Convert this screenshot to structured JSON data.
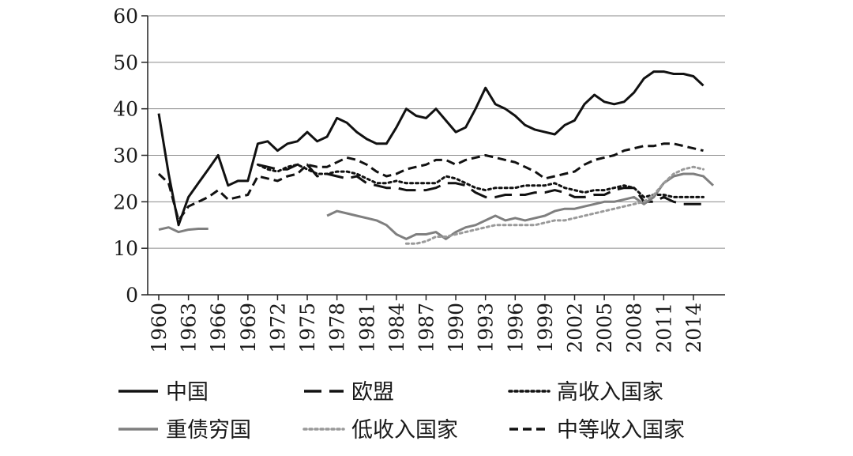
{
  "chart_data": {
    "type": "line",
    "ylim": [
      0,
      60
    ],
    "yticks": [
      "0",
      "10",
      "20",
      "30",
      "40",
      "50",
      "60"
    ],
    "xlim": [
      1960,
      2016
    ],
    "xticks": [
      "1960",
      "1963",
      "1966",
      "1969",
      "1972",
      "1975",
      "1978",
      "1981",
      "1984",
      "1987",
      "1990",
      "1993",
      "1996",
      "1999",
      "2002",
      "2005",
      "2008",
      "2011",
      "2014"
    ],
    "grid": "horizontal",
    "legend_position": "bottom",
    "series": [
      {
        "name": "中国",
        "color": "#111111",
        "dash": "solid",
        "width": 3,
        "points": [
          [
            1960,
            39
          ],
          [
            1961,
            26
          ],
          [
            1962,
            15
          ],
          [
            1963,
            21
          ],
          [
            1964,
            24
          ],
          [
            1965,
            27
          ],
          [
            1966,
            30
          ],
          [
            1967,
            23.5
          ],
          [
            1968,
            24.5
          ],
          [
            1969,
            24.5
          ],
          [
            1970,
            32.5
          ],
          [
            1971,
            33
          ],
          [
            1972,
            31
          ],
          [
            1973,
            32.5
          ],
          [
            1974,
            33
          ],
          [
            1975,
            35
          ],
          [
            1976,
            33
          ],
          [
            1977,
            34
          ],
          [
            1978,
            38
          ],
          [
            1979,
            37
          ],
          [
            1980,
            35
          ],
          [
            1981,
            33.5
          ],
          [
            1982,
            32.5
          ],
          [
            1983,
            32.5
          ],
          [
            1984,
            36
          ],
          [
            1985,
            40
          ],
          [
            1986,
            38.5
          ],
          [
            1987,
            38
          ],
          [
            1988,
            40
          ],
          [
            1989,
            37.5
          ],
          [
            1990,
            35
          ],
          [
            1991,
            36
          ],
          [
            1992,
            40
          ],
          [
            1993,
            44.5
          ],
          [
            1994,
            41
          ],
          [
            1995,
            40
          ],
          [
            1996,
            38.5
          ],
          [
            1997,
            36.5
          ],
          [
            1998,
            35.5
          ],
          [
            1999,
            35
          ],
          [
            2000,
            34.5
          ],
          [
            2001,
            36.5
          ],
          [
            2002,
            37.5
          ],
          [
            2003,
            41
          ],
          [
            2004,
            43
          ],
          [
            2005,
            41.5
          ],
          [
            2006,
            41
          ],
          [
            2007,
            41.5
          ],
          [
            2008,
            43.5
          ],
          [
            2009,
            46.5
          ],
          [
            2010,
            48
          ],
          [
            2011,
            48
          ],
          [
            2012,
            47.5
          ],
          [
            2013,
            47.5
          ],
          [
            2014,
            47
          ],
          [
            2015,
            45
          ]
        ]
      },
      {
        "name": "欧盟",
        "color": "#111111",
        "dash": "longdash",
        "width": 3,
        "points": [
          [
            1970,
            28
          ],
          [
            1971,
            27.5
          ],
          [
            1972,
            27
          ],
          [
            1973,
            27
          ],
          [
            1974,
            28
          ],
          [
            1975,
            28
          ],
          [
            1976,
            25.5
          ],
          [
            1977,
            26
          ],
          [
            1978,
            25.5
          ],
          [
            1979,
            25
          ],
          [
            1980,
            25.5
          ],
          [
            1981,
            24
          ],
          [
            1982,
            23.5
          ],
          [
            1983,
            23
          ],
          [
            1984,
            23
          ],
          [
            1985,
            22.5
          ],
          [
            1986,
            22.5
          ],
          [
            1987,
            22.5
          ],
          [
            1988,
            23
          ],
          [
            1989,
            24
          ],
          [
            1990,
            24
          ],
          [
            1991,
            23.5
          ],
          [
            1992,
            22
          ],
          [
            1993,
            21
          ],
          [
            1994,
            21
          ],
          [
            1995,
            21.5
          ],
          [
            1996,
            21.5
          ],
          [
            1997,
            21.5
          ],
          [
            1998,
            22
          ],
          [
            1999,
            22
          ],
          [
            2000,
            22.5
          ],
          [
            2001,
            22
          ],
          [
            2002,
            21
          ],
          [
            2003,
            21
          ],
          [
            2004,
            21.5
          ],
          [
            2005,
            21.5
          ],
          [
            2006,
            22.5
          ],
          [
            2007,
            23
          ],
          [
            2008,
            23
          ],
          [
            2009,
            20
          ],
          [
            2010,
            20
          ],
          [
            2011,
            21
          ],
          [
            2012,
            20
          ],
          [
            2013,
            19.5
          ],
          [
            2014,
            19.5
          ],
          [
            2015,
            19.5
          ]
        ]
      },
      {
        "name": "高收入国家",
        "color": "#111111",
        "dash": "dotted",
        "width": 3,
        "points": [
          [
            1970,
            28
          ],
          [
            1971,
            27
          ],
          [
            1972,
            26.5
          ],
          [
            1973,
            27.5
          ],
          [
            1974,
            28
          ],
          [
            1975,
            27
          ],
          [
            1976,
            26
          ],
          [
            1977,
            26
          ],
          [
            1978,
            26.5
          ],
          [
            1979,
            26.5
          ],
          [
            1980,
            26
          ],
          [
            1981,
            25
          ],
          [
            1982,
            24
          ],
          [
            1983,
            24
          ],
          [
            1984,
            24.5
          ],
          [
            1985,
            24
          ],
          [
            1986,
            24
          ],
          [
            1987,
            24
          ],
          [
            1988,
            24
          ],
          [
            1989,
            25.5
          ],
          [
            1990,
            25
          ],
          [
            1991,
            24
          ],
          [
            1992,
            23
          ],
          [
            1993,
            22.5
          ],
          [
            1994,
            23
          ],
          [
            1995,
            23
          ],
          [
            1996,
            23
          ],
          [
            1997,
            23.5
          ],
          [
            1998,
            23.5
          ],
          [
            1999,
            23.5
          ],
          [
            2000,
            24
          ],
          [
            2001,
            23
          ],
          [
            2002,
            22.5
          ],
          [
            2003,
            22
          ],
          [
            2004,
            22.5
          ],
          [
            2005,
            22.5
          ],
          [
            2006,
            23
          ],
          [
            2007,
            23.5
          ],
          [
            2008,
            23
          ],
          [
            2009,
            21
          ],
          [
            2010,
            21.5
          ],
          [
            2011,
            21.5
          ],
          [
            2012,
            21
          ],
          [
            2013,
            21
          ],
          [
            2014,
            21
          ],
          [
            2015,
            21
          ]
        ]
      },
      {
        "name": "重债穷国",
        "color": "#7f7f7f",
        "dash": "solid",
        "width": 3,
        "segments": [
          [
            [
              1960,
              14
            ],
            [
              1961,
              14.5
            ],
            [
              1962,
              13.5
            ],
            [
              1963,
              14
            ],
            [
              1964,
              14.2
            ],
            [
              1965,
              14.2
            ]
          ],
          [
            [
              1977,
              17
            ],
            [
              1978,
              18
            ],
            [
              1979,
              17.5
            ],
            [
              1980,
              17
            ],
            [
              1981,
              16.5
            ],
            [
              1982,
              16
            ],
            [
              1983,
              15
            ],
            [
              1984,
              13
            ],
            [
              1985,
              12
            ],
            [
              1986,
              13
            ],
            [
              1987,
              13
            ],
            [
              1988,
              13.5
            ],
            [
              1989,
              12
            ],
            [
              1990,
              13.5
            ],
            [
              1991,
              14.5
            ],
            [
              1992,
              15
            ],
            [
              1993,
              16
            ],
            [
              1994,
              17
            ],
            [
              1995,
              16
            ],
            [
              1996,
              16.5
            ],
            [
              1997,
              16
            ],
            [
              1998,
              16.5
            ],
            [
              1999,
              17
            ],
            [
              2000,
              18
            ],
            [
              2001,
              18.5
            ],
            [
              2002,
              18.5
            ],
            [
              2003,
              19
            ],
            [
              2004,
              19.5
            ],
            [
              2005,
              20
            ],
            [
              2006,
              20
            ],
            [
              2007,
              20.5
            ],
            [
              2008,
              21
            ],
            [
              2009,
              19.5
            ],
            [
              2010,
              21
            ],
            [
              2011,
              24
            ],
            [
              2012,
              25.5
            ],
            [
              2013,
              26
            ],
            [
              2014,
              26
            ],
            [
              2015,
              25.5
            ],
            [
              2016,
              23.5
            ]
          ]
        ]
      },
      {
        "name": "低收入国家",
        "color": "#9a9a9a",
        "dash": "dotted",
        "width": 3,
        "points": [
          [
            1985,
            11
          ],
          [
            1986,
            11
          ],
          [
            1987,
            11.5
          ],
          [
            1988,
            12.5
          ],
          [
            1989,
            12.5
          ],
          [
            1990,
            13
          ],
          [
            1991,
            13.5
          ],
          [
            1992,
            14
          ],
          [
            1993,
            14.5
          ],
          [
            1994,
            15
          ],
          [
            1995,
            15
          ],
          [
            1996,
            15
          ],
          [
            1997,
            15
          ],
          [
            1998,
            15
          ],
          [
            1999,
            15.5
          ],
          [
            2000,
            16
          ],
          [
            2001,
            16
          ],
          [
            2002,
            16.5
          ],
          [
            2003,
            17
          ],
          [
            2004,
            17.5
          ],
          [
            2005,
            18
          ],
          [
            2006,
            18.5
          ],
          [
            2007,
            19
          ],
          [
            2008,
            19.5
          ],
          [
            2009,
            20
          ],
          [
            2010,
            21.5
          ],
          [
            2011,
            24
          ],
          [
            2012,
            26
          ],
          [
            2013,
            27
          ],
          [
            2014,
            27.5
          ],
          [
            2015,
            27
          ]
        ]
      },
      {
        "name": "中等收入国家",
        "color": "#111111",
        "dash": "shortdash",
        "width": 3,
        "points": [
          [
            1960,
            26
          ],
          [
            1961,
            24
          ],
          [
            1962,
            16
          ],
          [
            1963,
            19
          ],
          [
            1964,
            20
          ],
          [
            1965,
            21
          ],
          [
            1966,
            22.5
          ],
          [
            1967,
            20.5
          ],
          [
            1968,
            21
          ],
          [
            1969,
            21.5
          ],
          [
            1970,
            25.5
          ],
          [
            1971,
            25
          ],
          [
            1972,
            24.5
          ],
          [
            1973,
            25.5
          ],
          [
            1974,
            26
          ],
          [
            1975,
            28
          ],
          [
            1976,
            27.5
          ],
          [
            1977,
            27.5
          ],
          [
            1978,
            28.5
          ],
          [
            1979,
            29.5
          ],
          [
            1980,
            29
          ],
          [
            1981,
            28
          ],
          [
            1982,
            26.5
          ],
          [
            1983,
            25.5
          ],
          [
            1984,
            26
          ],
          [
            1985,
            27
          ],
          [
            1986,
            27.5
          ],
          [
            1987,
            28
          ],
          [
            1988,
            29
          ],
          [
            1989,
            29
          ],
          [
            1990,
            28
          ],
          [
            1991,
            29
          ],
          [
            1992,
            29.5
          ],
          [
            1993,
            30
          ],
          [
            1994,
            29.5
          ],
          [
            1995,
            29
          ],
          [
            1996,
            28.5
          ],
          [
            1997,
            27.5
          ],
          [
            1998,
            26.5
          ],
          [
            1999,
            25
          ],
          [
            2000,
            25.5
          ],
          [
            2001,
            26
          ],
          [
            2002,
            26.5
          ],
          [
            2003,
            28
          ],
          [
            2004,
            29
          ],
          [
            2005,
            29.5
          ],
          [
            2006,
            30
          ],
          [
            2007,
            31
          ],
          [
            2008,
            31.5
          ],
          [
            2009,
            32
          ],
          [
            2010,
            32
          ],
          [
            2011,
            32.5
          ],
          [
            2012,
            32.5
          ],
          [
            2013,
            32
          ],
          [
            2014,
            31.5
          ],
          [
            2015,
            31
          ]
        ]
      }
    ]
  }
}
